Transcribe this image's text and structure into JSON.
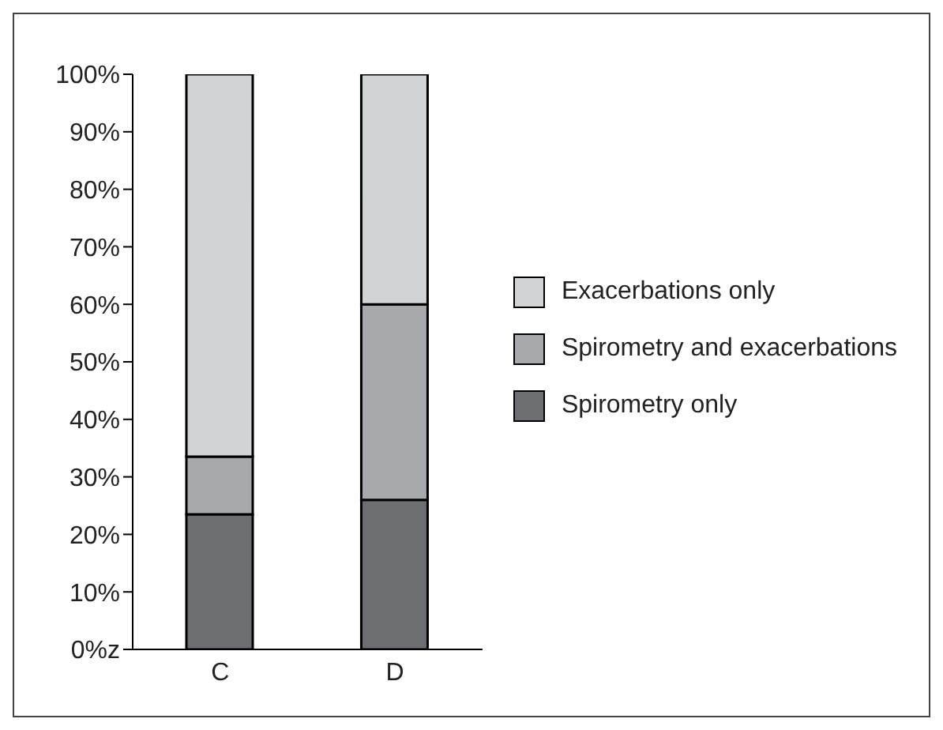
{
  "chart_data": {
    "type": "bar",
    "stacked": true,
    "categories": [
      "C",
      "D"
    ],
    "series": [
      {
        "name": "Spirometry only",
        "color": "#6d6e71",
        "values": [
          23.5,
          26
        ]
      },
      {
        "name": "Spirometry and exacerbations",
        "color": "#a7a9ac",
        "values": [
          10,
          34
        ]
      },
      {
        "name": "Exacerbations only",
        "color": "#d1d3d4",
        "values": [
          66.5,
          40
        ]
      }
    ],
    "ylim": [
      0,
      100
    ],
    "yticks": [
      {
        "value": 0,
        "label": "0%z"
      },
      {
        "value": 10,
        "label": "10%"
      },
      {
        "value": 20,
        "label": "20%"
      },
      {
        "value": 30,
        "label": "30%"
      },
      {
        "value": 40,
        "label": "40%"
      },
      {
        "value": 50,
        "label": "50%"
      },
      {
        "value": 60,
        "label": "60%"
      },
      {
        "value": 70,
        "label": "70%"
      },
      {
        "value": 80,
        "label": "80%"
      },
      {
        "value": 90,
        "label": "90%"
      },
      {
        "value": 100,
        "label": "100%"
      }
    ],
    "grid": false,
    "legend": "right"
  }
}
